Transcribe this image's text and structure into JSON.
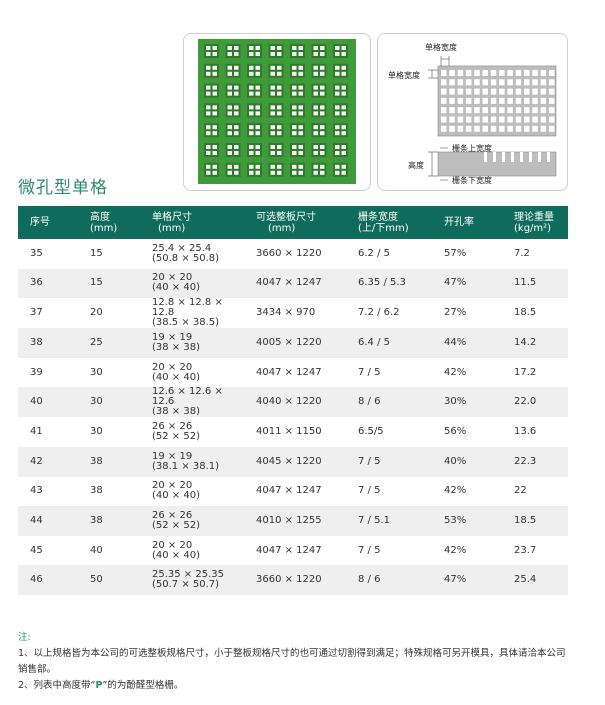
{
  "diagram": {
    "cell_width_top": "单格宽度",
    "cell_width_left": "单格宽度",
    "height_label": "高度",
    "bar_top_width": "栅条上宽度",
    "bar_bottom_width": "栅条下宽度"
  },
  "title": "微孔型单格",
  "table": {
    "headers": [
      {
        "l1": "序号",
        "l2": ""
      },
      {
        "l1": "高度",
        "l2": "(mm)"
      },
      {
        "l1": "单格尺寸",
        "l2": "(mm)"
      },
      {
        "l1": "可选整板尺寸",
        "l2": "(mm)"
      },
      {
        "l1": "栅条宽度",
        "l2": "(上/下mm)"
      },
      {
        "l1": "开孔率",
        "l2": ""
      },
      {
        "l1": "理论重量",
        "l2": "(kg/m²)"
      }
    ],
    "rows": [
      {
        "no": "35",
        "height": "15",
        "cell1": "25.4 × 25.4",
        "cell2": "(50.8 × 50.8)",
        "board": "3660 × 1220",
        "bar": "6.2 / 5",
        "open": "57%",
        "weight": "7.2"
      },
      {
        "no": "36",
        "height": "15",
        "cell1": "20 × 20",
        "cell2": "(40 × 40)",
        "board": "4047 × 1247",
        "bar": "6.35 / 5.3",
        "open": "47%",
        "weight": "11.5"
      },
      {
        "no": "37",
        "height": "20",
        "cell1": "12.8 × 12.8 × 12.8",
        "cell2": "(38.5 × 38.5)",
        "board": "3434 × 970",
        "bar": "7.2 / 6.2",
        "open": "27%",
        "weight": "18.5"
      },
      {
        "no": "38",
        "height": "25",
        "cell1": "19 × 19",
        "cell2": "(38 × 38)",
        "board": "4005 × 1220",
        "bar": "6.4 / 5",
        "open": "44%",
        "weight": "14.2"
      },
      {
        "no": "39",
        "height": "30",
        "cell1": "20 × 20",
        "cell2": "(40 × 40)",
        "board": "4047 × 1247",
        "bar": "7 / 5",
        "open": "42%",
        "weight": "17.2"
      },
      {
        "no": "40",
        "height": "30",
        "cell1": "12.6 × 12.6 × 12.6",
        "cell2": "(38 × 38)",
        "board": "4040 × 1220",
        "bar": "8 / 6",
        "open": "30%",
        "weight": "22.0"
      },
      {
        "no": "41",
        "height": "30",
        "cell1": "26 × 26",
        "cell2": "(52 × 52)",
        "board": "4011 × 1150",
        "bar": "6.5/5",
        "open": "56%",
        "weight": "13.6"
      },
      {
        "no": "42",
        "height": "38",
        "cell1": "19 × 19",
        "cell2": "(38.1 × 38.1)",
        "board": "4045 × 1220",
        "bar": "7 / 5",
        "open": "40%",
        "weight": "22.3"
      },
      {
        "no": "43",
        "height": "38",
        "cell1": "20 × 20",
        "cell2": "(40 × 40)",
        "board": "4047 × 1247",
        "bar": "7 / 5",
        "open": "42%",
        "weight": "22"
      },
      {
        "no": "44",
        "height": "38",
        "cell1": "26 × 26",
        "cell2": "(52 × 52)",
        "board": "4010 × 1255",
        "bar": "7 / 5.1",
        "open": "53%",
        "weight": "18.5"
      },
      {
        "no": "45",
        "height": "40",
        "cell1": "20 × 20",
        "cell2": "(40 × 40)",
        "board": "4047 × 1247",
        "bar": "7 / 5",
        "open": "42%",
        "weight": "23.7"
      },
      {
        "no": "46",
        "height": "50",
        "cell1": "25.35 × 25.35",
        "cell2": "(50.7 × 50.7)",
        "board": "3660 × 1220",
        "bar": "8 / 6",
        "open": "47%",
        "weight": "25.4"
      }
    ]
  },
  "notes": {
    "heading": "注:",
    "line1": "1、以上规格皆为本公司的可选整板规格尺寸，小于整板规格尺寸的也可通过切割得到满足；特殊规格可另开模具，具体请洽本公司销售部。",
    "line2_pre": "2、列表中高度带“",
    "line2_mark": "P",
    "line2_post": "”的为酚醛型格栅。"
  },
  "colors": {
    "header_bg": "#0f6b5b",
    "title": "#2f8a70",
    "grating_green": "#3f9a3a",
    "row_alt": "#efefef"
  }
}
